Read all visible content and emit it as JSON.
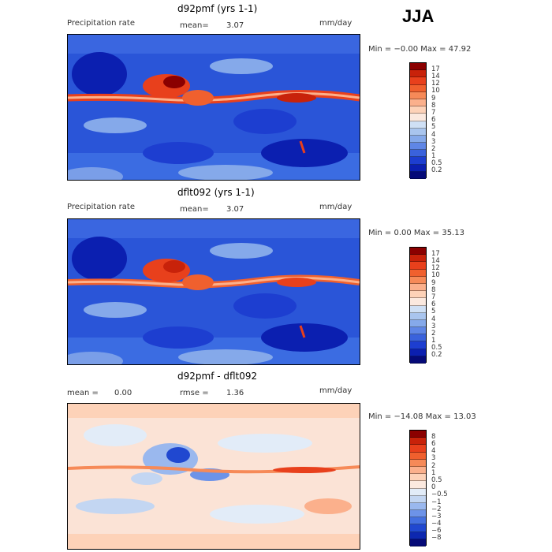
{
  "season": "JJA",
  "panels": [
    {
      "title": "d92pmf (yrs 1-1)",
      "variable": "Precipitation rate",
      "mean_label": "mean=",
      "mean_value": "3.07",
      "units": "mm/day",
      "minmax": "Min =  −0.00 Max =  47.92",
      "colorbar": {
        "labels": [
          "17",
          "14",
          "12",
          "10",
          "9",
          "8",
          "7",
          "6",
          "5",
          "4",
          "3",
          "2",
          "1",
          "0.5",
          "0.2"
        ],
        "colors": [
          "#8b0000",
          "#c8220a",
          "#e8401c",
          "#f0602e",
          "#f68a58",
          "#fbb08c",
          "#fdd2b8",
          "#fbe9df",
          "#cfe0f5",
          "#a9c5ee",
          "#85a9ea",
          "#5f86e6",
          "#3a62dc",
          "#1d3ed0",
          "#0b1fb0",
          "#050a78"
        ]
      }
    },
    {
      "title": "dflt092 (yrs 1-1)",
      "variable": "Precipitation rate",
      "mean_label": "mean=",
      "mean_value": "3.07",
      "units": "mm/day",
      "minmax": "Min =   0.00 Max =  35.13",
      "colorbar": {
        "labels": [
          "17",
          "14",
          "12",
          "10",
          "9",
          "8",
          "7",
          "6",
          "5",
          "4",
          "3",
          "2",
          "1",
          "0.5",
          "0.2"
        ],
        "colors": [
          "#8b0000",
          "#c8220a",
          "#e8401c",
          "#f0602e",
          "#f68a58",
          "#fbb08c",
          "#fdd2b8",
          "#fbe9df",
          "#cfe0f5",
          "#a9c5ee",
          "#85a9ea",
          "#5f86e6",
          "#3a62dc",
          "#1d3ed0",
          "#0b1fb0",
          "#050a78"
        ]
      }
    },
    {
      "title": "d92pmf - dflt092",
      "mean_label": "mean =",
      "mean_value": "0.00",
      "rmse_label": "rmse =",
      "rmse_value": "1.36",
      "units": "mm/day",
      "minmax": "Min = −14.08 Max =  13.03",
      "colorbar": {
        "labels": [
          "8",
          "6",
          "4",
          "3",
          "2",
          "1",
          "0.5",
          "0",
          "−0.5",
          "−1",
          "−2",
          "−3",
          "−4",
          "−6",
          "−8"
        ],
        "colors": [
          "#8b0000",
          "#c8220a",
          "#e8401c",
          "#f0602e",
          "#f68a58",
          "#fbb08c",
          "#fdd2b8",
          "#fbe9df",
          "#e2ecf8",
          "#c3d6f2",
          "#9ab8ee",
          "#6d93e8",
          "#4470e0",
          "#2048d0",
          "#0d27b0",
          "#050a78"
        ]
      }
    }
  ],
  "chart_data": [
    {
      "type": "heatmap",
      "title": "d92pmf (yrs 1-1)",
      "variable": "Precipitation rate",
      "units": "mm/day",
      "mean": 3.07,
      "min": -0.0,
      "max": 47.92,
      "levels": [
        0.2,
        0.5,
        1,
        2,
        3,
        4,
        5,
        6,
        7,
        8,
        9,
        10,
        12,
        14,
        17
      ]
    },
    {
      "type": "heatmap",
      "title": "dflt092 (yrs 1-1)",
      "variable": "Precipitation rate",
      "units": "mm/day",
      "mean": 3.07,
      "min": 0.0,
      "max": 35.13,
      "levels": [
        0.2,
        0.5,
        1,
        2,
        3,
        4,
        5,
        6,
        7,
        8,
        9,
        10,
        12,
        14,
        17
      ]
    },
    {
      "type": "heatmap",
      "title": "d92pmf - dflt092",
      "units": "mm/day",
      "mean": 0.0,
      "rmse": 1.36,
      "min": -14.08,
      "max": 13.03,
      "levels": [
        -8,
        -6,
        -4,
        -3,
        -2,
        -1,
        -0.5,
        0,
        0.5,
        1,
        2,
        3,
        4,
        6,
        8
      ]
    }
  ]
}
